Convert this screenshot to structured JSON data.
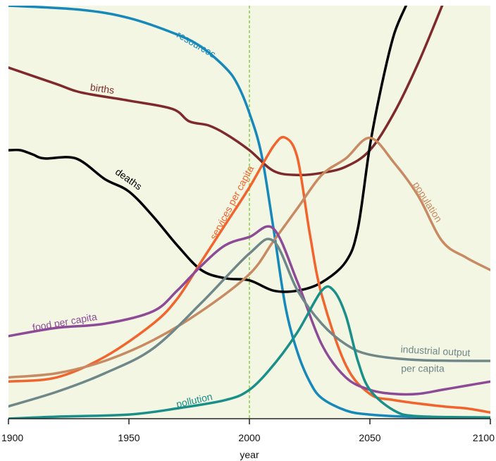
{
  "chart_data": {
    "type": "line",
    "xlabel": "year",
    "ylabel": "",
    "xlim": [
      1900,
      2100
    ],
    "ylim": [
      0,
      100
    ],
    "x_ticks": [
      "1900",
      "1950",
      "2000",
      "2050",
      "2100"
    ],
    "reference_line_x": 2000,
    "grid": false,
    "plot_background": "#f2f6e2",
    "reference_line_color": "#9fd86c",
    "series": [
      {
        "name": "resources",
        "color": "#1788ba",
        "points": [
          [
            1900,
            100
          ],
          [
            1930,
            99
          ],
          [
            1950,
            97
          ],
          [
            1970,
            93
          ],
          [
            1980,
            90
          ],
          [
            1990,
            85
          ],
          [
            1995,
            81
          ],
          [
            2000,
            74
          ],
          [
            2005,
            64
          ],
          [
            2010,
            46
          ],
          [
            2015,
            27
          ],
          [
            2020,
            16
          ],
          [
            2025,
            9
          ],
          [
            2030,
            5
          ],
          [
            2040,
            2
          ],
          [
            2050,
            1
          ],
          [
            2070,
            0.4
          ],
          [
            2100,
            0.2
          ]
        ]
      },
      {
        "name": "births",
        "color": "#7e2a2c",
        "points": [
          [
            1900,
            85
          ],
          [
            1920,
            81
          ],
          [
            1930,
            79
          ],
          [
            1950,
            77
          ],
          [
            1968,
            75
          ],
          [
            1975,
            72
          ],
          [
            1983,
            71
          ],
          [
            1990,
            69
          ],
          [
            2000,
            65
          ],
          [
            2010,
            60
          ],
          [
            2020,
            59
          ],
          [
            2030,
            59.5
          ],
          [
            2040,
            61
          ],
          [
            2050,
            65
          ],
          [
            2060,
            74
          ],
          [
            2070,
            86
          ],
          [
            2080,
            100
          ]
        ]
      },
      {
        "name": "deaths",
        "color": "#000000",
        "points": [
          [
            1900,
            65
          ],
          [
            1905,
            65
          ],
          [
            1910,
            64
          ],
          [
            1915,
            63
          ],
          [
            1928,
            63
          ],
          [
            1940,
            58
          ],
          [
            1950,
            55
          ],
          [
            1960,
            49
          ],
          [
            1970,
            42
          ],
          [
            1980,
            36
          ],
          [
            1990,
            34
          ],
          [
            2000,
            33.5
          ],
          [
            2010,
            31
          ],
          [
            2020,
            31
          ],
          [
            2030,
            33
          ],
          [
            2040,
            38
          ],
          [
            2045,
            46
          ],
          [
            2050,
            66
          ],
          [
            2055,
            81
          ],
          [
            2060,
            93
          ],
          [
            2065,
            100
          ]
        ]
      },
      {
        "name": "services per capita",
        "color": "#f2642d",
        "points": [
          [
            1900,
            9
          ],
          [
            1920,
            10
          ],
          [
            1940,
            15
          ],
          [
            1960,
            23
          ],
          [
            1970,
            29
          ],
          [
            1980,
            38
          ],
          [
            1990,
            47
          ],
          [
            2000,
            56
          ],
          [
            2010,
            66
          ],
          [
            2015,
            68
          ],
          [
            2020,
            63
          ],
          [
            2025,
            45
          ],
          [
            2030,
            30
          ],
          [
            2040,
            13
          ],
          [
            2050,
            6
          ],
          [
            2060,
            4.5
          ],
          [
            2080,
            3
          ],
          [
            2090,
            2.5
          ],
          [
            2100,
            1.5
          ]
        ]
      },
      {
        "name": "population",
        "color": "#c88a62",
        "points": [
          [
            1900,
            10
          ],
          [
            1920,
            11
          ],
          [
            1940,
            14
          ],
          [
            1960,
            19
          ],
          [
            1980,
            26
          ],
          [
            2000,
            35
          ],
          [
            2010,
            43
          ],
          [
            2020,
            51
          ],
          [
            2030,
            59
          ],
          [
            2040,
            63
          ],
          [
            2050,
            68
          ],
          [
            2060,
            62
          ],
          [
            2070,
            54
          ],
          [
            2080,
            43
          ],
          [
            2090,
            39
          ],
          [
            2100,
            36
          ]
        ]
      },
      {
        "name": "food per capita",
        "color": "#8d4a97",
        "points": [
          [
            1900,
            20
          ],
          [
            1920,
            22
          ],
          [
            1940,
            23
          ],
          [
            1960,
            26
          ],
          [
            1970,
            31
          ],
          [
            1980,
            37
          ],
          [
            1990,
            42
          ],
          [
            2000,
            44
          ],
          [
            2010,
            46
          ],
          [
            2020,
            33
          ],
          [
            2030,
            18
          ],
          [
            2040,
            10
          ],
          [
            2050,
            7
          ],
          [
            2060,
            6
          ],
          [
            2070,
            6
          ],
          [
            2080,
            7
          ],
          [
            2090,
            8
          ],
          [
            2100,
            9
          ]
        ]
      },
      {
        "name": "industrial output per capita",
        "color": "#70878a",
        "points": [
          [
            1900,
            3
          ],
          [
            1920,
            6.5
          ],
          [
            1940,
            11
          ],
          [
            1960,
            17
          ],
          [
            1980,
            28
          ],
          [
            2000,
            40
          ],
          [
            2010,
            43
          ],
          [
            2020,
            31
          ],
          [
            2030,
            23
          ],
          [
            2040,
            18
          ],
          [
            2050,
            15.5
          ],
          [
            2070,
            14.2
          ],
          [
            2100,
            14
          ]
        ]
      },
      {
        "name": "pollution",
        "color": "#1a8e89",
        "points": [
          [
            1900,
            0
          ],
          [
            1920,
            0.5
          ],
          [
            1950,
            1
          ],
          [
            1970,
            2.5
          ],
          [
            1990,
            4.5
          ],
          [
            2000,
            7
          ],
          [
            2010,
            13
          ],
          [
            2020,
            21
          ],
          [
            2030,
            31
          ],
          [
            2035,
            31
          ],
          [
            2040,
            25
          ],
          [
            2045,
            14
          ],
          [
            2050,
            7
          ],
          [
            2060,
            2
          ],
          [
            2070,
            0.6
          ],
          [
            2100,
            0.3
          ]
        ]
      }
    ],
    "series_labels": [
      {
        "series": "resources",
        "text": "resources"
      },
      {
        "series": "births",
        "text": "births"
      },
      {
        "series": "deaths",
        "text": "deaths"
      },
      {
        "series": "services per capita",
        "text": "services per capita"
      },
      {
        "series": "population",
        "text": "population"
      },
      {
        "series": "food per capita",
        "text": "food per capita"
      },
      {
        "series": "industrial output per capita",
        "text": "industrial output"
      },
      {
        "series": "industrial output per capita",
        "text": "per capita"
      },
      {
        "series": "pollution",
        "text": "pollution"
      }
    ]
  }
}
